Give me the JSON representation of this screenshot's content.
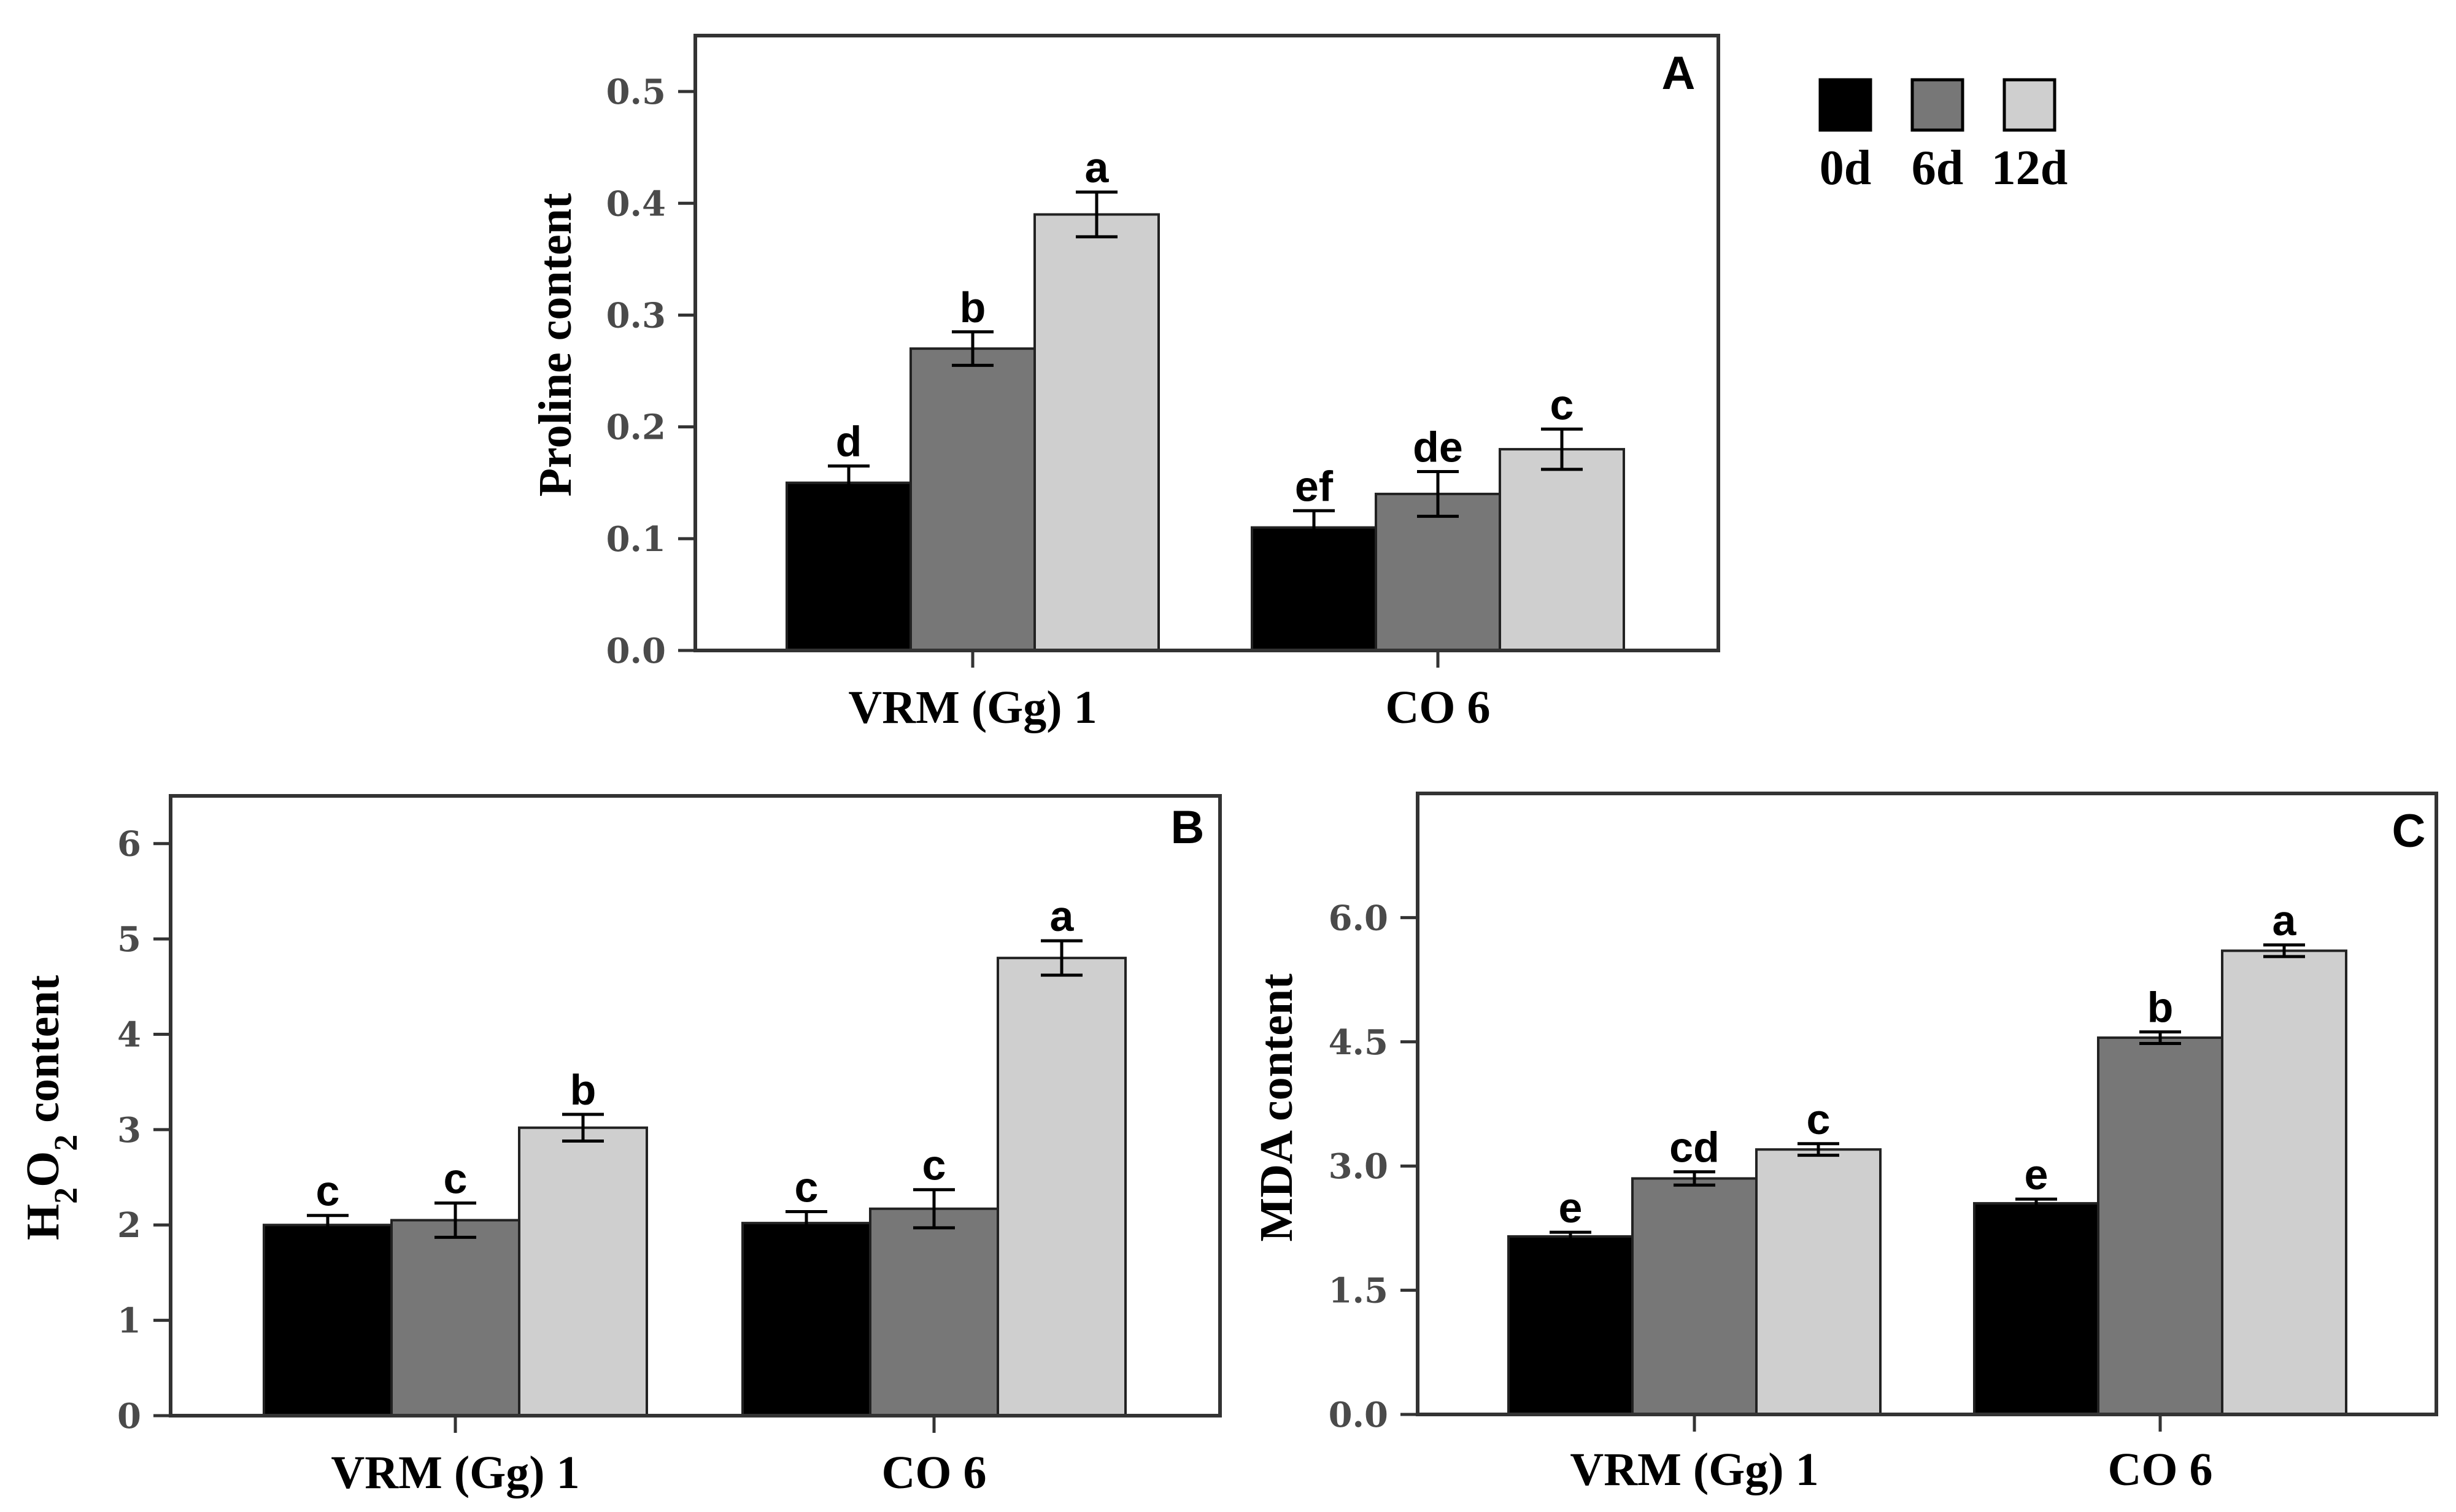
{
  "legend": {
    "items": [
      {
        "label": "0d",
        "color": "#000000"
      },
      {
        "label": "6d",
        "color": "#777777"
      },
      {
        "label": "12d",
        "color": "#cfcfcf"
      }
    ]
  },
  "chart_data": [
    {
      "type": "bar",
      "panel": "A",
      "ylabel": "Proline content",
      "ylim": [
        0,
        0.55
      ],
      "yticks": [
        "0.0",
        "0.1",
        "0.2",
        "0.3",
        "0.4",
        "0.5"
      ],
      "categories": [
        "VRM (Gg) 1",
        "CO 6"
      ],
      "series": [
        {
          "name": "0d",
          "values": [
            0.15,
            0.11
          ],
          "errors": [
            0.015,
            0.015
          ],
          "letters": [
            "d",
            "ef"
          ]
        },
        {
          "name": "6d",
          "values": [
            0.27,
            0.14
          ],
          "errors": [
            0.015,
            0.02
          ],
          "letters": [
            "b",
            "de"
          ]
        },
        {
          "name": "12d",
          "values": [
            0.39,
            0.18
          ],
          "errors": [
            0.02,
            0.018
          ],
          "letters": [
            "a",
            "c"
          ]
        }
      ]
    },
    {
      "type": "bar",
      "panel": "B",
      "ylabel_main": "H",
      "ylabel_sub1": "2",
      "ylabel_mid": "O",
      "ylabel_sub2": "2",
      "ylabel_tail": " content",
      "ylim": [
        0,
        6.5
      ],
      "yticks": [
        "0",
        "1",
        "2",
        "3",
        "4",
        "5",
        "6"
      ],
      "categories": [
        "VRM (Gg) 1",
        "CO 6"
      ],
      "series": [
        {
          "name": "0d",
          "values": [
            2.0,
            2.02
          ],
          "errors": [
            0.1,
            0.12
          ],
          "letters": [
            "c",
            "c"
          ]
        },
        {
          "name": "6d",
          "values": [
            2.05,
            2.17
          ],
          "errors": [
            0.18,
            0.2
          ],
          "letters": [
            "c",
            "c"
          ]
        },
        {
          "name": "12d",
          "values": [
            3.02,
            4.8
          ],
          "errors": [
            0.14,
            0.18
          ],
          "letters": [
            "b",
            "a"
          ]
        }
      ]
    },
    {
      "type": "bar",
      "panel": "C",
      "ylabel": "MDA content",
      "ylim": [
        0,
        7.5
      ],
      "yticks": [
        "0.0",
        "1.5",
        "3.0",
        "4.5",
        "6.0"
      ],
      "categories": [
        "VRM (Gg) 1",
        "CO 6"
      ],
      "series": [
        {
          "name": "0d",
          "values": [
            2.15,
            2.55
          ],
          "errors": [
            0.05,
            0.05
          ],
          "letters": [
            "e",
            "e"
          ]
        },
        {
          "name": "6d",
          "values": [
            2.85,
            4.55
          ],
          "errors": [
            0.08,
            0.07
          ],
          "letters": [
            "cd",
            "b"
          ]
        },
        {
          "name": "12d",
          "values": [
            3.2,
            5.6
          ],
          "errors": [
            0.07,
            0.07
          ],
          "letters": [
            "c",
            "a"
          ]
        }
      ]
    }
  ]
}
